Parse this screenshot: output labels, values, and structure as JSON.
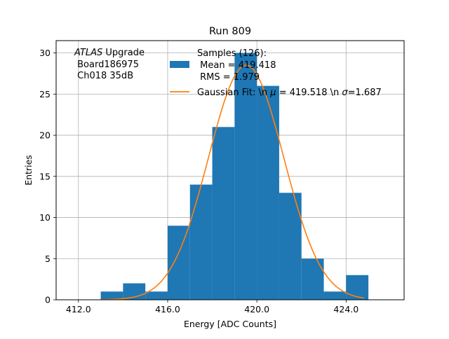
{
  "chart_data": {
    "type": "bar",
    "title": "Run 809",
    "xlabel": "Energy [ADC Counts]",
    "ylabel": "Entries",
    "xlim": [
      411.0,
      426.6
    ],
    "ylim": [
      0,
      31.5
    ],
    "x_ticks": [
      412,
      416,
      420,
      424
    ],
    "x_tick_labels": [
      "412.0",
      "416.0",
      "420.0",
      "424.0"
    ],
    "y_ticks": [
      0,
      5,
      10,
      15,
      20,
      25,
      30
    ],
    "y_tick_labels": [
      "0",
      "5",
      "10",
      "15",
      "20",
      "25",
      "30"
    ],
    "grid": true,
    "annotation_lines": [
      "ATLAS",
      " Upgrade",
      " Board186975",
      " Ch018 35dB"
    ],
    "bin_edges": [
      413,
      414,
      415,
      416,
      417,
      418,
      419,
      420,
      421,
      422,
      423,
      424,
      425
    ],
    "values": [
      1,
      2,
      1,
      9,
      14,
      21,
      30,
      26,
      13,
      5,
      1,
      3
    ],
    "fit": {
      "mu": 419.518,
      "sigma": 1.687,
      "amplitude": 28.5,
      "x_range": [
        413.0,
        424.8
      ]
    },
    "legend": {
      "position": "top-right",
      "series": [
        {
          "name": "Samples (126):\n Mean = 419.418\n RMS = 1.979",
          "type": "histogram",
          "color": "#1f77b4"
        },
        {
          "name": "Gaussian Fit: \\n $\\mu$ = 419.518 \\n $\\sigma$=1.687",
          "type": "line",
          "color": "#ff7f0e"
        }
      ]
    }
  }
}
